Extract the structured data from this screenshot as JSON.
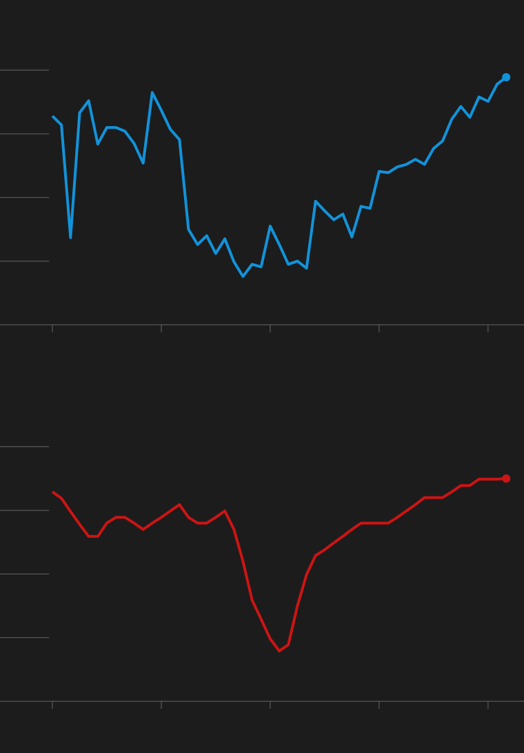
{
  "chart_data": [
    {
      "type": "line",
      "color": "#1193da",
      "end_marker": true,
      "grid": true,
      "x": [
        0,
        1,
        2,
        3,
        4,
        5,
        6,
        7,
        8,
        9,
        10,
        11,
        12,
        13,
        14,
        15,
        16,
        17,
        18,
        19,
        20,
        21,
        22,
        23,
        24,
        25,
        26,
        27,
        28,
        29,
        30,
        31,
        32,
        33,
        34,
        35,
        36,
        37,
        38,
        39,
        40,
        41,
        42,
        43,
        44,
        45,
        46,
        47,
        48,
        49,
        50
      ],
      "values": [
        3.28,
        3.14,
        1.37,
        3.33,
        3.52,
        2.84,
        3.1,
        3.1,
        3.04,
        2.85,
        2.54,
        3.65,
        3.37,
        3.07,
        2.91,
        1.5,
        1.26,
        1.4,
        1.12,
        1.35,
        0.99,
        0.76,
        0.95,
        0.91,
        1.55,
        1.26,
        0.95,
        1.0,
        0.89,
        1.94,
        1.79,
        1.65,
        1.74,
        1.38,
        1.86,
        1.83,
        2.41,
        2.39,
        2.48,
        2.52,
        2.6,
        2.52,
        2.77,
        2.89,
        3.23,
        3.43,
        3.26,
        3.58,
        3.51,
        3.78,
        3.89
      ],
      "xlim": [
        -5.77,
        51.96
      ],
      "xticks": [
        0,
        12,
        24,
        36,
        48
      ],
      "ylim": [
        0,
        5
      ],
      "yticks": [
        1,
        2,
        3,
        4
      ]
    },
    {
      "type": "line",
      "color": "#cc1414",
      "end_marker": true,
      "grid": true,
      "x": [
        0,
        1,
        2,
        3,
        4,
        5,
        6,
        7,
        8,
        9,
        10,
        11,
        12,
        13,
        14,
        15,
        16,
        17,
        18,
        19,
        20,
        21,
        22,
        23,
        24,
        25,
        26,
        27,
        28,
        29,
        30,
        31,
        32,
        33,
        34,
        35,
        36,
        37,
        38,
        39,
        40,
        41,
        42,
        43,
        44,
        45,
        46,
        47,
        48,
        49,
        50
      ],
      "values": [
        3.29,
        3.19,
        2.98,
        2.78,
        2.59,
        2.59,
        2.8,
        2.89,
        2.89,
        2.8,
        2.7,
        2.8,
        2.89,
        2.99,
        3.09,
        2.89,
        2.8,
        2.8,
        2.89,
        2.99,
        2.7,
        2.2,
        1.59,
        1.29,
        0.98,
        0.79,
        0.89,
        1.5,
        1.99,
        2.29,
        2.38,
        2.49,
        2.59,
        2.7,
        2.8,
        2.8,
        2.8,
        2.8,
        2.89,
        2.99,
        3.09,
        3.2,
        3.2,
        3.2,
        3.29,
        3.39,
        3.39,
        3.49,
        3.49,
        3.49,
        3.5
      ],
      "xlim": [
        -5.77,
        51.96
      ],
      "xticks": [
        0,
        12,
        24,
        36,
        48
      ],
      "ylim": [
        0,
        5
      ],
      "yticks": [
        1,
        2,
        3,
        4
      ]
    }
  ]
}
